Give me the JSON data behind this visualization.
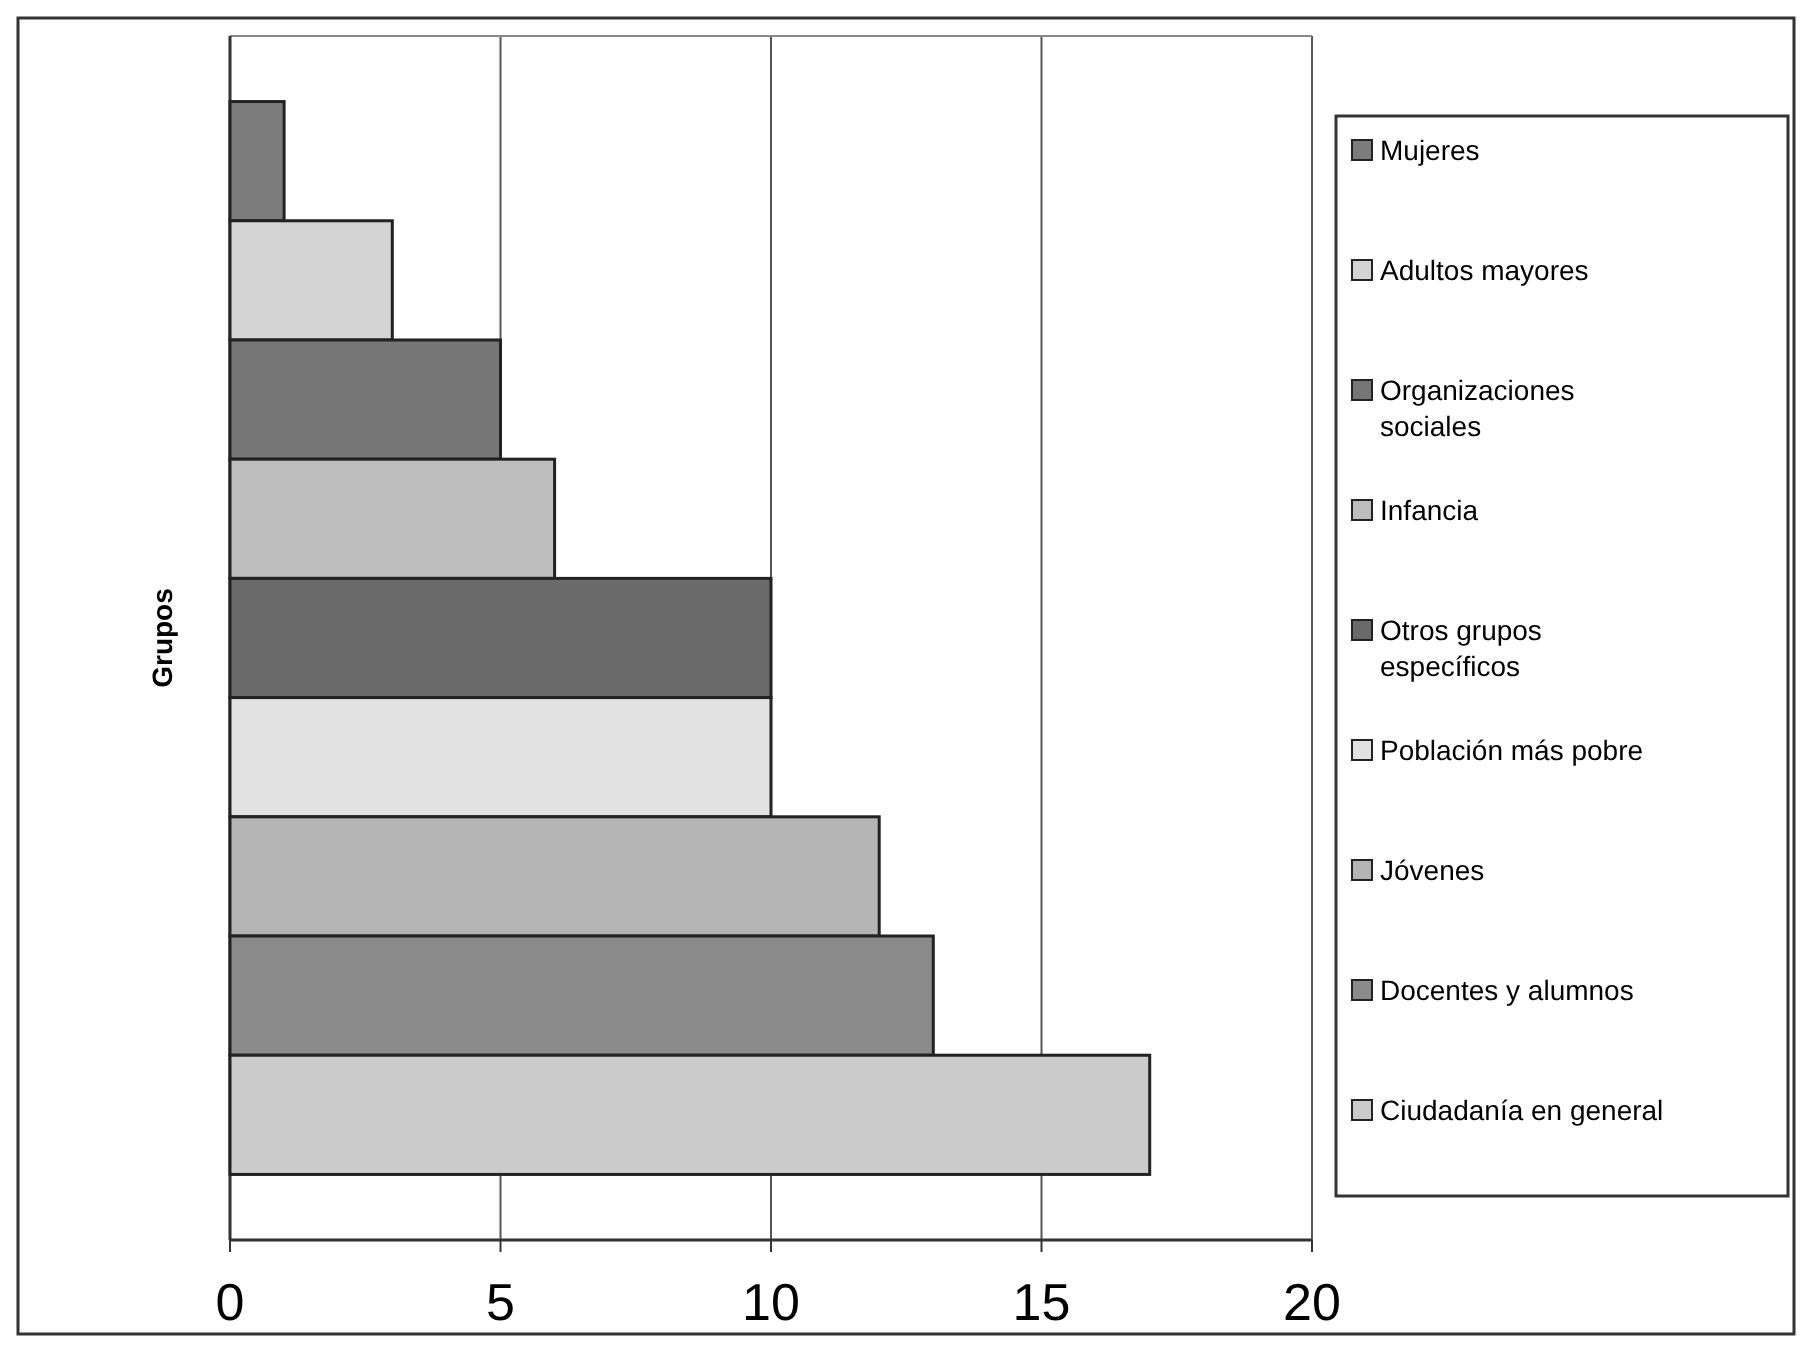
{
  "chart_data": {
    "type": "bar",
    "orientation": "horizontal",
    "ylabel": "Grupos",
    "categories": [
      null,
      null,
      null,
      null,
      null,
      null,
      null,
      null,
      null
    ],
    "series": [
      {
        "name": "Mujeres",
        "color": "#7c7c7c",
        "values": [
          1,
          null,
          null,
          null,
          null,
          null,
          null,
          null,
          null
        ]
      },
      {
        "name": "Adultos mayores",
        "color": "#d4d4d4",
        "values": [
          null,
          3,
          null,
          null,
          null,
          null,
          null,
          null,
          null
        ]
      },
      {
        "name": "Organizaciones sociales",
        "color": "#767676",
        "values": [
          null,
          null,
          5,
          null,
          null,
          null,
          null,
          null,
          null
        ]
      },
      {
        "name": "Infancia",
        "color": "#bdbdbd",
        "values": [
          null,
          null,
          null,
          6,
          null,
          null,
          null,
          null,
          null
        ]
      },
      {
        "name": "Otros grupos específicos",
        "color": "#6a6a6a",
        "values": [
          null,
          null,
          null,
          null,
          10,
          null,
          null,
          null,
          null
        ]
      },
      {
        "name": "Población más pobre",
        "color": "#e2e2e2",
        "values": [
          null,
          null,
          null,
          null,
          null,
          10,
          null,
          null,
          null
        ]
      },
      {
        "name": "Jóvenes",
        "color": "#b4b4b4",
        "values": [
          null,
          null,
          null,
          null,
          null,
          null,
          12,
          null,
          null
        ]
      },
      {
        "name": "Docentes y alumnos",
        "color": "#8a8a8a",
        "values": [
          null,
          null,
          null,
          null,
          null,
          null,
          null,
          13,
          null
        ]
      },
      {
        "name": "Ciudadanía en general",
        "color": "#cbcbcb",
        "values": [
          null,
          null,
          null,
          null,
          null,
          null,
          null,
          null,
          17
        ]
      }
    ],
    "xlim": [
      0,
      20
    ],
    "xticks": [
      0,
      5,
      10,
      15,
      20
    ],
    "grid": "x",
    "legend": "right"
  }
}
